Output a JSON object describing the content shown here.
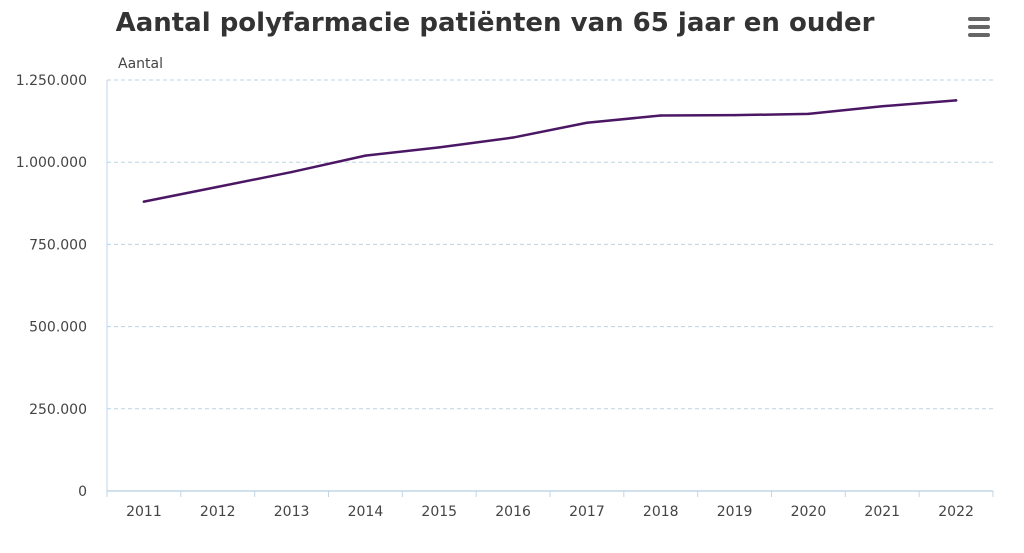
{
  "chart_data": {
    "type": "line",
    "title": "Aantal polyfarmacie patiënten van 65 jaar en ouder",
    "ylabel": "Aantal",
    "xlabel": "",
    "categories": [
      "2011",
      "2012",
      "2013",
      "2014",
      "2015",
      "2016",
      "2017",
      "2018",
      "2019",
      "2020",
      "2021",
      "2022"
    ],
    "series": [
      {
        "values": [
          880000,
          925000,
          970000,
          1020000,
          1045000,
          1075000,
          1120000,
          1142000,
          1143000,
          1147000,
          1170000,
          1188000
        ]
      }
    ],
    "ylim": [
      0,
      1250000
    ],
    "yticks": [
      0,
      250000,
      500000,
      750000,
      1000000,
      1250000
    ],
    "ytick_labels": [
      "0",
      "250.000",
      "500.000",
      "750.000",
      "1.000.000",
      "1.250.000"
    ],
    "grid": "horizontal dashed",
    "colors": {
      "line": "#4b1764",
      "grid": "#b9d3e6",
      "axis": "#c0d6e8"
    }
  },
  "toolbar": {
    "menu_icon": "hamburger-menu"
  }
}
